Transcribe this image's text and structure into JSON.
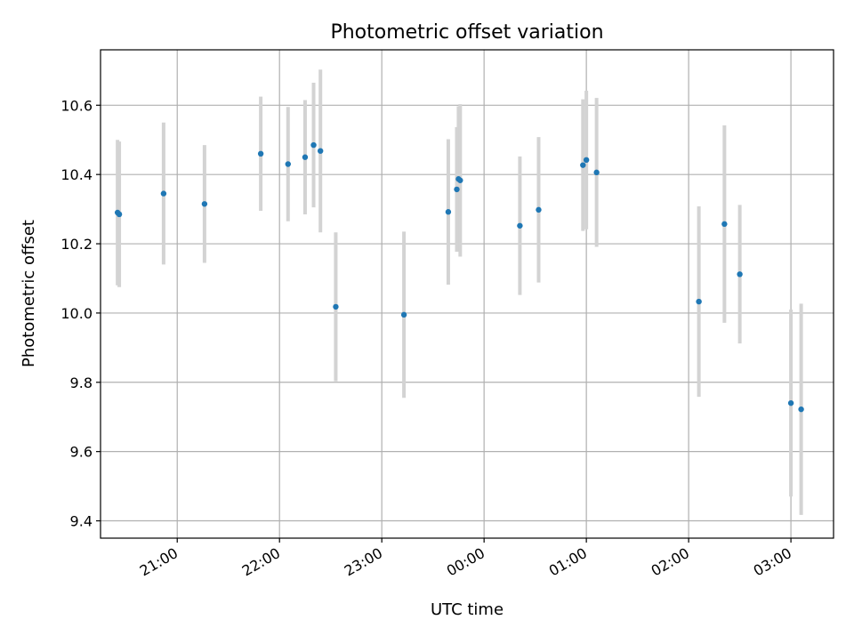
{
  "chart_data": {
    "type": "scatter",
    "title": "Photometric offset variation",
    "xlabel": "UTC time",
    "ylabel": "Photometric offset",
    "x_axis_kind": "time",
    "xlim": [
      "20:15",
      "03:25"
    ],
    "ylim": [
      9.35,
      10.76
    ],
    "grid": true,
    "x_tick_labels": [
      "21:00",
      "22:00",
      "23:00",
      "00:00",
      "01:00",
      "02:00",
      "03:00"
    ],
    "y_ticks": [
      9.4,
      9.6,
      9.8,
      10.0,
      10.2,
      10.4,
      10.6
    ],
    "y_tick_labels": [
      "9.4",
      "9.6",
      "9.8",
      "10.0",
      "10.2",
      "10.4",
      "10.6"
    ],
    "colors": {
      "points": "#1f77b4",
      "errorbars": "#d3d3d3",
      "grid": "#b0b0b0"
    },
    "series": [
      {
        "x": [
          "20:25",
          "20:26",
          "20:52",
          "21:16",
          "21:49",
          "22:05",
          "22:15",
          "22:20",
          "22:24",
          "22:33",
          "23:13",
          "23:39",
          "23:44",
          "23:45",
          "23:46",
          "00:21",
          "00:32",
          "00:58",
          "01:00",
          "01:06",
          "02:06",
          "02:21",
          "02:30",
          "03:00",
          "03:06"
        ],
        "y": [
          10.29,
          10.285,
          10.345,
          10.315,
          10.46,
          10.43,
          10.45,
          10.485,
          10.468,
          10.018,
          9.995,
          10.292,
          10.357,
          10.387,
          10.383,
          10.252,
          10.298,
          10.427,
          10.442,
          10.406,
          10.033,
          10.257,
          10.112,
          9.74,
          9.722
        ],
        "yerr": [
          0.21,
          0.21,
          0.205,
          0.17,
          0.165,
          0.165,
          0.165,
          0.18,
          0.235,
          0.215,
          0.24,
          0.21,
          0.18,
          0.21,
          0.22,
          0.2,
          0.21,
          0.19,
          0.2,
          0.215,
          0.275,
          0.285,
          0.2,
          0.27,
          0.305
        ]
      }
    ]
  }
}
